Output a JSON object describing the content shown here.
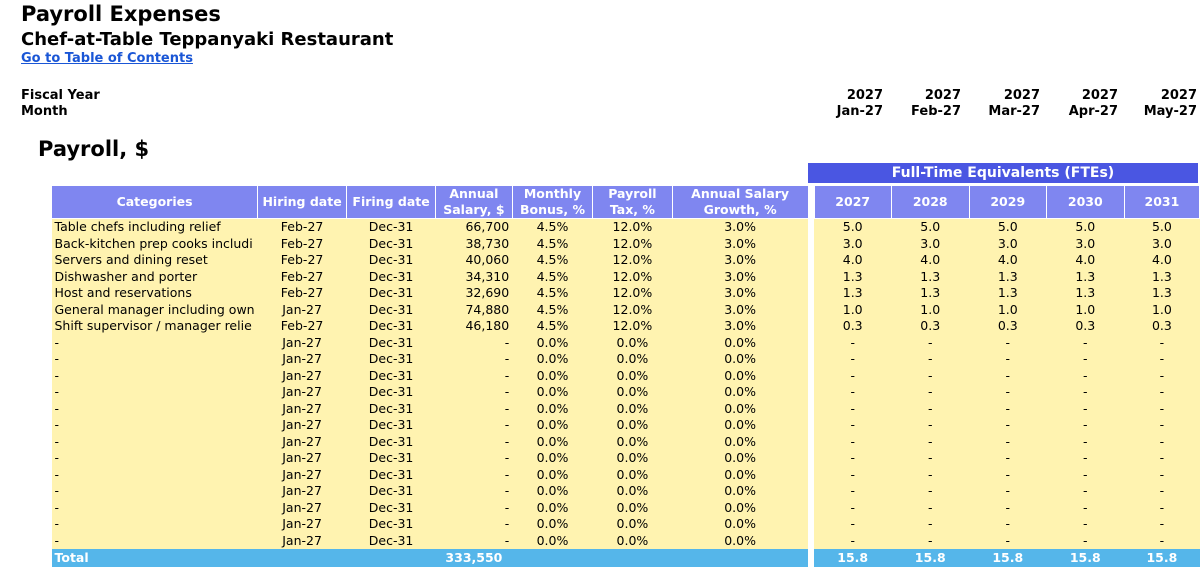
{
  "page": {
    "title": "Payroll Expenses",
    "subtitle": "Chef-at-Table Teppanyaki Restaurant",
    "toc_link": "Go to Table of Contents",
    "fiscal_year_label": "Fiscal Year",
    "month_label": "Month",
    "section_title": "Payroll, $"
  },
  "timeline": [
    {
      "year": "2027",
      "month": "Jan-27"
    },
    {
      "year": "2027",
      "month": "Feb-27"
    },
    {
      "year": "2027",
      "month": "Mar-27"
    },
    {
      "year": "2027",
      "month": "Apr-27"
    },
    {
      "year": "2027",
      "month": "May-27"
    }
  ],
  "fte_header": "Full-Time Equivalents (FTEs)",
  "columns": [
    "Categories",
    "Hiring date",
    "Firing date",
    "Annual Salary, $",
    "Monthly Bonus, %",
    "Payroll Tax, %",
    "Annual Salary Growth, %"
  ],
  "fte_years": [
    "2027",
    "2028",
    "2029",
    "2030",
    "2031"
  ],
  "rows": [
    {
      "cat": "Table chefs including relief",
      "hire": "Feb-27",
      "fire": "Dec-31",
      "salary": "66,700",
      "bonus": "4.5%",
      "tax": "12.0%",
      "growth": "3.0%",
      "fte": [
        "5.0",
        "5.0",
        "5.0",
        "5.0",
        "5.0"
      ]
    },
    {
      "cat": "Back-kitchen prep cooks includi",
      "hire": "Feb-27",
      "fire": "Dec-31",
      "salary": "38,730",
      "bonus": "4.5%",
      "tax": "12.0%",
      "growth": "3.0%",
      "fte": [
        "3.0",
        "3.0",
        "3.0",
        "3.0",
        "3.0"
      ]
    },
    {
      "cat": "Servers and dining reset",
      "hire": "Feb-27",
      "fire": "Dec-31",
      "salary": "40,060",
      "bonus": "4.5%",
      "tax": "12.0%",
      "growth": "3.0%",
      "fte": [
        "4.0",
        "4.0",
        "4.0",
        "4.0",
        "4.0"
      ]
    },
    {
      "cat": "Dishwasher and porter",
      "hire": "Feb-27",
      "fire": "Dec-31",
      "salary": "34,310",
      "bonus": "4.5%",
      "tax": "12.0%",
      "growth": "3.0%",
      "fte": [
        "1.3",
        "1.3",
        "1.3",
        "1.3",
        "1.3"
      ]
    },
    {
      "cat": "Host and reservations",
      "hire": "Feb-27",
      "fire": "Dec-31",
      "salary": "32,690",
      "bonus": "4.5%",
      "tax": "12.0%",
      "growth": "3.0%",
      "fte": [
        "1.3",
        "1.3",
        "1.3",
        "1.3",
        "1.3"
      ]
    },
    {
      "cat": "General manager including own",
      "hire": "Jan-27",
      "fire": "Dec-31",
      "salary": "74,880",
      "bonus": "4.5%",
      "tax": "12.0%",
      "growth": "3.0%",
      "fte": [
        "1.0",
        "1.0",
        "1.0",
        "1.0",
        "1.0"
      ]
    },
    {
      "cat": "Shift supervisor / manager relie",
      "hire": "Feb-27",
      "fire": "Dec-31",
      "salary": "46,180",
      "bonus": "4.5%",
      "tax": "12.0%",
      "growth": "3.0%",
      "fte": [
        "0.3",
        "0.3",
        "0.3",
        "0.3",
        "0.3"
      ]
    },
    {
      "cat": "-",
      "hire": "Jan-27",
      "fire": "Dec-31",
      "salary": "-",
      "bonus": "0.0%",
      "tax": "0.0%",
      "growth": "0.0%",
      "fte": [
        "-",
        "-",
        "-",
        "-",
        "-"
      ]
    },
    {
      "cat": "-",
      "hire": "Jan-27",
      "fire": "Dec-31",
      "salary": "-",
      "bonus": "0.0%",
      "tax": "0.0%",
      "growth": "0.0%",
      "fte": [
        "-",
        "-",
        "-",
        "-",
        "-"
      ]
    },
    {
      "cat": "-",
      "hire": "Jan-27",
      "fire": "Dec-31",
      "salary": "-",
      "bonus": "0.0%",
      "tax": "0.0%",
      "growth": "0.0%",
      "fte": [
        "-",
        "-",
        "-",
        "-",
        "-"
      ]
    },
    {
      "cat": "-",
      "hire": "Jan-27",
      "fire": "Dec-31",
      "salary": "-",
      "bonus": "0.0%",
      "tax": "0.0%",
      "growth": "0.0%",
      "fte": [
        "-",
        "-",
        "-",
        "-",
        "-"
      ]
    },
    {
      "cat": "-",
      "hire": "Jan-27",
      "fire": "Dec-31",
      "salary": "-",
      "bonus": "0.0%",
      "tax": "0.0%",
      "growth": "0.0%",
      "fte": [
        "-",
        "-",
        "-",
        "-",
        "-"
      ]
    },
    {
      "cat": "-",
      "hire": "Jan-27",
      "fire": "Dec-31",
      "salary": "-",
      "bonus": "0.0%",
      "tax": "0.0%",
      "growth": "0.0%",
      "fte": [
        "-",
        "-",
        "-",
        "-",
        "-"
      ]
    },
    {
      "cat": "-",
      "hire": "Jan-27",
      "fire": "Dec-31",
      "salary": "-",
      "bonus": "0.0%",
      "tax": "0.0%",
      "growth": "0.0%",
      "fte": [
        "-",
        "-",
        "-",
        "-",
        "-"
      ]
    },
    {
      "cat": "-",
      "hire": "Jan-27",
      "fire": "Dec-31",
      "salary": "-",
      "bonus": "0.0%",
      "tax": "0.0%",
      "growth": "0.0%",
      "fte": [
        "-",
        "-",
        "-",
        "-",
        "-"
      ]
    },
    {
      "cat": "-",
      "hire": "Jan-27",
      "fire": "Dec-31",
      "salary": "-",
      "bonus": "0.0%",
      "tax": "0.0%",
      "growth": "0.0%",
      "fte": [
        "-",
        "-",
        "-",
        "-",
        "-"
      ]
    },
    {
      "cat": "-",
      "hire": "Jan-27",
      "fire": "Dec-31",
      "salary": "-",
      "bonus": "0.0%",
      "tax": "0.0%",
      "growth": "0.0%",
      "fte": [
        "-",
        "-",
        "-",
        "-",
        "-"
      ]
    },
    {
      "cat": "-",
      "hire": "Jan-27",
      "fire": "Dec-31",
      "salary": "-",
      "bonus": "0.0%",
      "tax": "0.0%",
      "growth": "0.0%",
      "fte": [
        "-",
        "-",
        "-",
        "-",
        "-"
      ]
    },
    {
      "cat": "-",
      "hire": "Jan-27",
      "fire": "Dec-31",
      "salary": "-",
      "bonus": "0.0%",
      "tax": "0.0%",
      "growth": "0.0%",
      "fte": [
        "-",
        "-",
        "-",
        "-",
        "-"
      ]
    },
    {
      "cat": "-",
      "hire": "Jan-27",
      "fire": "Dec-31",
      "salary": "-",
      "bonus": "0.0%",
      "tax": "0.0%",
      "growth": "0.0%",
      "fte": [
        "-",
        "-",
        "-",
        "-",
        "-"
      ]
    }
  ],
  "total": {
    "label": "Total",
    "salary": "333,550",
    "fte": [
      "15.8",
      "15.8",
      "15.8",
      "15.8",
      "15.8"
    ]
  },
  "colors": {
    "header": "#7f86f0",
    "banner": "#4a56e2",
    "input_cell": "#fff3b0",
    "total_row": "#55b6ea",
    "link": "#1a56d6"
  }
}
